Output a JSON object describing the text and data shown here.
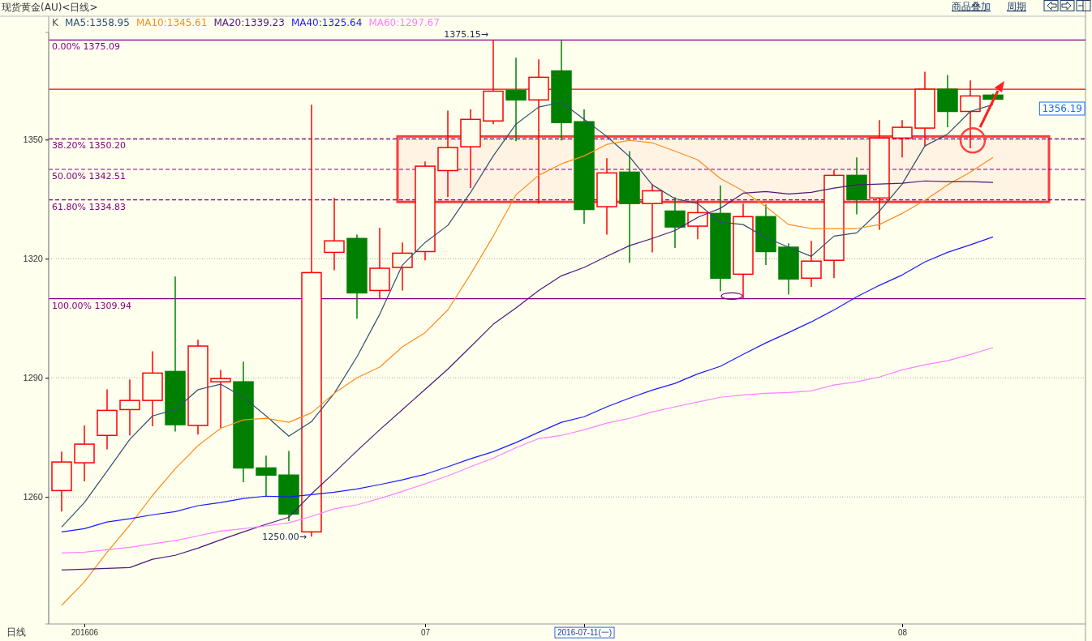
{
  "chart_data": {
    "type": "candlestick",
    "title": "现货黄金(AU)<日线>",
    "categories": [
      null,
      "201606",
      null,
      null,
      null,
      null,
      null,
      null,
      null,
      null,
      null,
      null,
      null,
      null,
      null,
      null,
      "07",
      null,
      null,
      null,
      null,
      null,
      null,
      "2016-07-11(一)",
      null,
      null,
      null,
      null,
      null,
      null,
      null,
      null,
      null,
      null,
      null,
      null,
      null,
      "08",
      null,
      null,
      null,
      null
    ],
    "ohlc": [
      [
        1261.6,
        1271.4,
        1256.3,
        1268.8
      ],
      [
        1268.6,
        1278.0,
        1263.9,
        1273.3
      ],
      [
        1275.5,
        1287.1,
        1272.0,
        1281.8
      ],
      [
        1282.0,
        1289.6,
        1275.5,
        1284.3
      ],
      [
        1284.3,
        1296.7,
        1277.8,
        1291.2
      ],
      [
        1291.6,
        1315.5,
        1276.5,
        1278.2
      ],
      [
        1278.0,
        1299.6,
        1275.7,
        1298.0
      ],
      [
        1289.0,
        1292.0,
        1277.3,
        1289.8
      ],
      [
        1289.0,
        1294.1,
        1263.7,
        1267.3
      ],
      [
        1267.3,
        1270.4,
        1260.2,
        1265.5
      ],
      [
        1265.5,
        1271.6,
        1253.9,
        1255.7
      ],
      [
        1251.2,
        1358.8,
        1250.0,
        1316.5
      ],
      [
        1321.6,
        1335.3,
        1317.1,
        1324.5
      ],
      [
        1325.1,
        1326.1,
        1304.9,
        1311.4
      ],
      [
        1312.0,
        1327.8,
        1310.0,
        1317.6
      ],
      [
        1317.8,
        1324.1,
        1312.0,
        1321.4
      ],
      [
        1321.8,
        1344.5,
        1319.6,
        1343.3
      ],
      [
        1342.2,
        1357.3,
        1335.5,
        1348.0
      ],
      [
        1348.2,
        1357.6,
        1337.8,
        1355.1
      ],
      [
        1354.7,
        1375.15,
        1353.9,
        1362.2
      ],
      [
        1362.4,
        1370.6,
        1349.6,
        1360.0
      ],
      [
        1360.0,
        1370.2,
        1333.9,
        1365.7
      ],
      [
        1367.3,
        1374.9,
        1349.8,
        1354.3
      ],
      [
        1354.5,
        1357.6,
        1328.8,
        1332.4
      ],
      [
        1333.1,
        1345.3,
        1326.1,
        1341.6
      ],
      [
        1341.8,
        1347.1,
        1319.0,
        1333.9
      ],
      [
        1333.9,
        1338.8,
        1321.6,
        1337.1
      ],
      [
        1332.0,
        1335.5,
        1322.7,
        1328.0
      ],
      [
        1328.2,
        1334.9,
        1324.9,
        1331.6
      ],
      [
        1331.4,
        1338.4,
        1311.8,
        1315.1
      ],
      [
        1316.1,
        1333.9,
        1310.0,
        1330.6
      ],
      [
        1330.6,
        1333.7,
        1318.4,
        1321.8
      ],
      [
        1322.9,
        1323.9,
        1311.0,
        1314.9
      ],
      [
        1315.1,
        1324.5,
        1312.9,
        1319.4
      ],
      [
        1319.6,
        1342.4,
        1315.1,
        1341.0
      ],
      [
        1341.0,
        1345.5,
        1331.2,
        1334.9
      ],
      [
        1335.3,
        1354.9,
        1327.3,
        1350.4
      ],
      [
        1350.4,
        1354.9,
        1345.5,
        1353.1
      ],
      [
        1352.9,
        1367.1,
        1348.2,
        1362.7
      ],
      [
        1362.7,
        1366.3,
        1353.1,
        1357.1
      ],
      [
        1357.1,
        1364.9,
        1347.8,
        1361.0
      ],
      [
        1361.2,
        1361.6,
        1360.2,
        1360.2
      ]
    ],
    "colors": [
      "#ff0000",
      "#ff0000",
      "#ff0000",
      "#ff0000",
      "#ff0000",
      "#008000",
      "#ff0000",
      "#ff0000",
      "#008000",
      "#008000",
      "#008000",
      "#ff0000",
      "#ff0000",
      "#008000",
      "#ff0000",
      "#ff0000",
      "#ff0000",
      "#ff0000",
      "#ff0000",
      "#ff0000",
      "#008000",
      "#ff0000",
      "#008000",
      "#008000",
      "#ff0000",
      "#008000",
      "#ff0000",
      "#008000",
      "#ff0000",
      "#008000",
      "#ff0000",
      "#008000",
      "#008000",
      "#ff0000",
      "#ff0000",
      "#008000",
      "#ff0000",
      "#ff0000",
      "#ff0000",
      "#008000",
      "#ff0000",
      "#008000"
    ],
    "series": [
      {
        "type": "line",
        "name": "MA5:1358.95",
        "color": "#2f4f6f",
        "values": [
          1252.4,
          1258.6,
          1266.5,
          1274.5,
          1280.4,
          1282.0,
          1287.0,
          1288.4,
          1285.1,
          1280.4,
          1275.3,
          1279.0,
          1286.1,
          1295.3,
          1306.0,
          1318.4,
          1324.1,
          1328.4,
          1336.7,
          1345.9,
          1353.9,
          1358.2,
          1359.4,
          1355.1,
          1350.8,
          1345.7,
          1338.6,
          1335.1,
          1333.9,
          1329.2,
          1328.6,
          1325.3,
          1322.9,
          1320.6,
          1325.7,
          1326.5,
          1332.0,
          1338.8,
          1348.4,
          1351.4,
          1357.1,
          1358.8
        ]
      },
      {
        "type": "line",
        "name": "MA10:1345.61",
        "color": "#ff8c1a",
        "values": [
          1232.7,
          1238.6,
          1246.1,
          1252.9,
          1260.4,
          1267.1,
          1272.9,
          1277.3,
          1279.4,
          1279.8,
          1278.8,
          1281.2,
          1286.1,
          1290.0,
          1292.7,
          1297.8,
          1301.4,
          1307.1,
          1316.1,
          1325.7,
          1336.1,
          1341.0,
          1343.9,
          1345.9,
          1348.8,
          1349.8,
          1349.2,
          1347.1,
          1344.9,
          1340.2,
          1337.1,
          1333.1,
          1328.6,
          1327.6,
          1327.6,
          1327.6,
          1328.6,
          1331.4,
          1334.7,
          1338.6,
          1341.8,
          1345.5
        ]
      },
      {
        "type": "line",
        "name": "MA20:1339.23",
        "color": "#4b1a7a",
        "values": [
          1241.6,
          1241.8,
          1242.0,
          1242.2,
          1244.3,
          1245.3,
          1247.1,
          1249.2,
          1251.2,
          1253.1,
          1254.9,
          1260.8,
          1266.1,
          1271.6,
          1276.9,
          1282.0,
          1287.1,
          1292.2,
          1297.8,
          1303.5,
          1307.6,
          1312.0,
          1315.7,
          1317.8,
          1320.6,
          1323.3,
          1325.1,
          1327.1,
          1330.4,
          1332.7,
          1336.5,
          1336.9,
          1336.3,
          1336.7,
          1337.8,
          1338.6,
          1338.8,
          1339.0,
          1339.6,
          1339.4,
          1339.4,
          1339.2
        ]
      },
      {
        "type": "line",
        "name": "MA40:1325.64",
        "color": "#1a1aff",
        "values": [
          1251.2,
          1252.0,
          1253.7,
          1254.5,
          1255.5,
          1256.3,
          1257.8,
          1258.6,
          1259.6,
          1260.2,
          1260.0,
          1260.6,
          1261.2,
          1262.0,
          1263.1,
          1264.3,
          1265.7,
          1267.6,
          1269.6,
          1271.4,
          1273.7,
          1276.3,
          1278.8,
          1280.2,
          1282.7,
          1284.9,
          1286.9,
          1288.6,
          1291.0,
          1292.9,
          1295.9,
          1298.8,
          1301.4,
          1304.1,
          1307.1,
          1310.4,
          1313.3,
          1315.9,
          1319.2,
          1321.6,
          1323.5,
          1325.5
        ]
      },
      {
        "type": "line",
        "name": "MA60:1297.67",
        "color": "#ff80ff",
        "values": [
          1245.9,
          1246.1,
          1246.7,
          1247.3,
          1248.2,
          1249.0,
          1250.2,
          1251.4,
          1252.0,
          1252.7,
          1253.5,
          1255.1,
          1257.0,
          1258.0,
          1259.6,
          1261.4,
          1263.3,
          1265.3,
          1267.6,
          1269.8,
          1272.4,
          1274.7,
          1275.5,
          1276.9,
          1278.6,
          1279.8,
          1281.4,
          1282.7,
          1283.9,
          1285.1,
          1285.7,
          1286.1,
          1286.3,
          1286.7,
          1288.2,
          1289.0,
          1290.2,
          1292.0,
          1293.3,
          1294.3,
          1295.9,
          1297.6
        ]
      }
    ],
    "ylim": [
      1228,
      1377
    ],
    "yticks": [
      1260,
      1290,
      1320,
      1350
    ],
    "grid": "y",
    "legend": "top left",
    "marker": "none",
    "line_style": "solid",
    "ref_lines": [
      {
        "axis": "y",
        "value": 1375.09,
        "label": "0.00% 1375.09",
        "color": "#800080",
        "line_style": "solid"
      },
      {
        "axis": "y",
        "value": 1362.7,
        "color": "#ff0000",
        "line_style": "solid"
      },
      {
        "axis": "y",
        "value": 1350.2,
        "label": "38.20% 1350.20",
        "color": "#800080",
        "line_style": "dashed"
      },
      {
        "axis": "y",
        "value": 1342.51,
        "label": "50.00% 1342.51",
        "color": "#800080",
        "line_style": "dashed"
      },
      {
        "axis": "y",
        "value": 1334.83,
        "label": "61.80% 1334.83",
        "color": "#800080",
        "line_style": "dashed"
      },
      {
        "axis": "y",
        "value": 1309.94,
        "label": "100.00% 1309.94",
        "color": "#800080",
        "line_style": "solid"
      }
    ],
    "bands": [
      {
        "axis": "y",
        "from": 1334.3,
        "to": 1350.8,
        "color": "#ff3b3b"
      }
    ],
    "annotations": [
      {
        "text": "1375.15→",
        "y": 1375.15
      },
      "1250.00→",
      "K",
      "1356.19",
      "日线",
      "商品叠加",
      "周期"
    ]
  }
}
